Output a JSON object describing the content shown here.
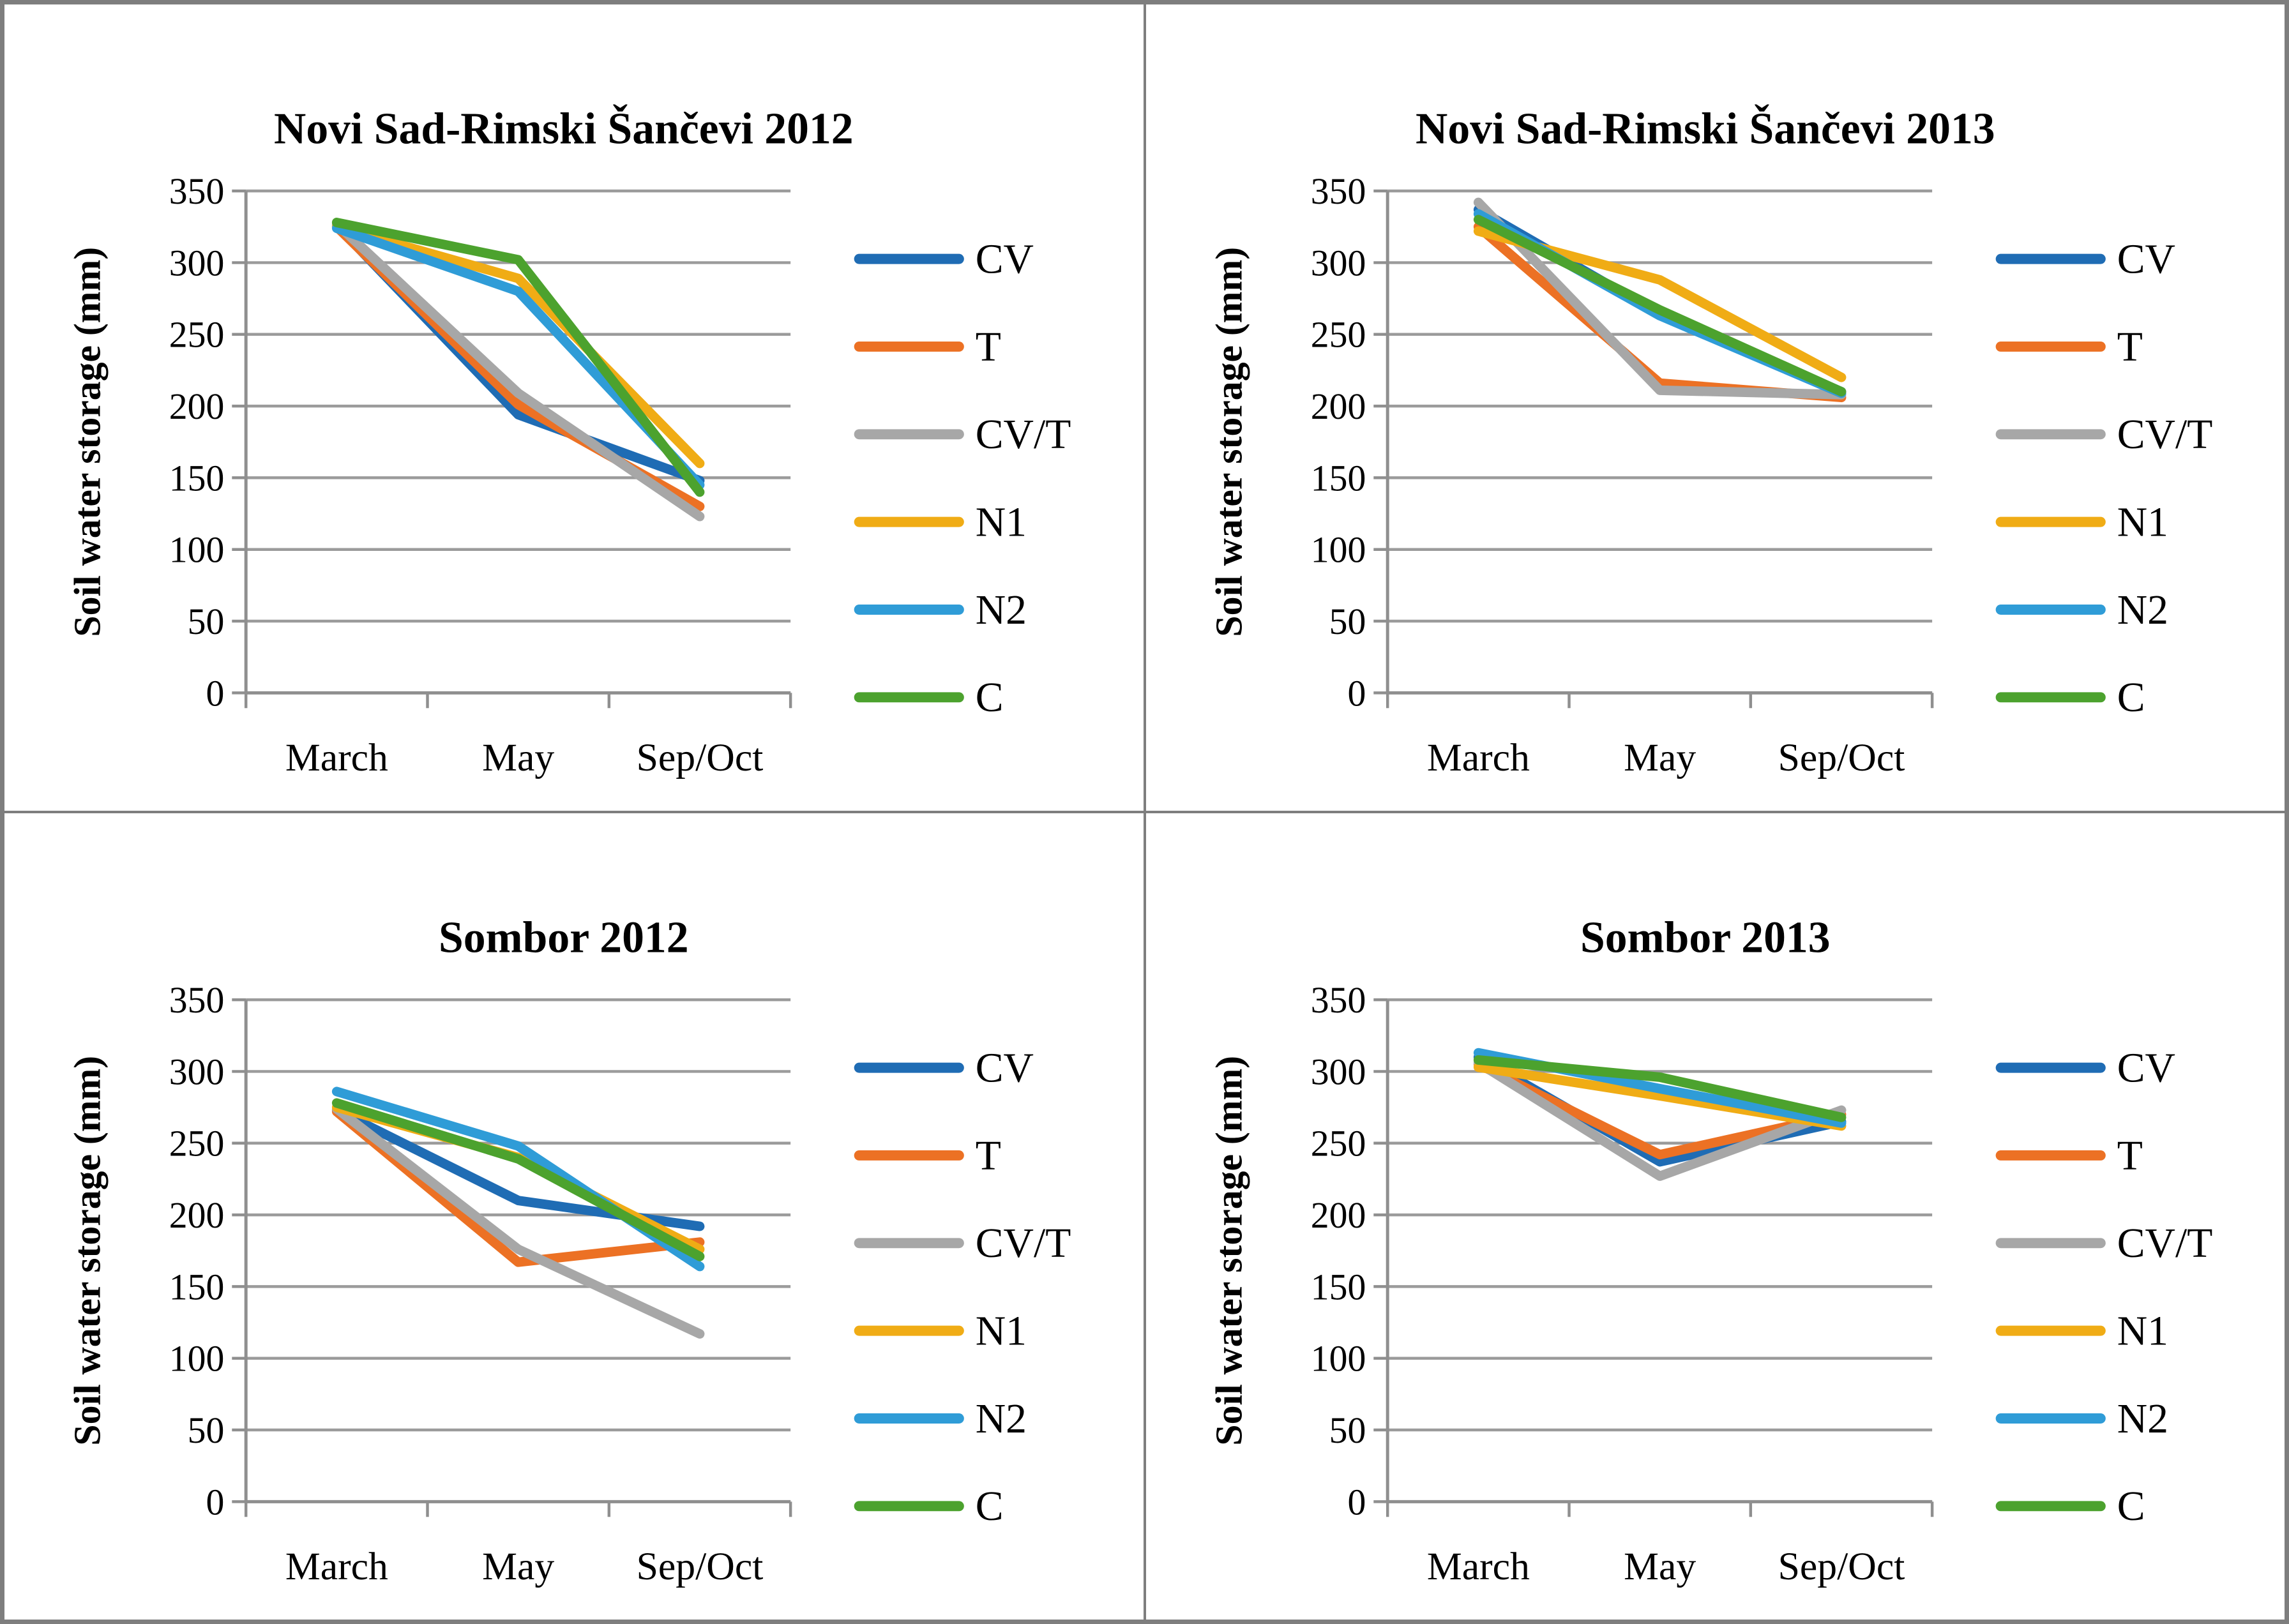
{
  "figure": {
    "ylabel": "Soil water storage (mm)",
    "x_categories": [
      "March",
      "May",
      "Sep/Oct"
    ],
    "y_ticks": [
      350,
      300,
      250,
      200,
      150,
      100,
      50,
      0
    ],
    "legend_position": "right",
    "grid": "horizontal",
    "colors": {
      "CV": "#1f6cb4",
      "T": "#ec7124",
      "CV/T": "#a7a7a7",
      "N1": "#f0ac15",
      "N2": "#2f9cd7",
      "C": "#4ca22e",
      "gridline": "#9b9b9b",
      "axis": "#8f8f8f",
      "border": "#7e7e7e",
      "text": "#000000"
    }
  },
  "chart_data": [
    {
      "type": "line",
      "title": "Novi Sad-Rimski Šančevi 2012",
      "xlabel": "",
      "ylabel": "Soil water storage (mm)",
      "ylim": [
        0,
        350
      ],
      "ytick_step": 50,
      "categories": [
        "March",
        "May",
        "Sep/Oct"
      ],
      "series": [
        {
          "name": "CV",
          "values": [
            326,
            194,
            148
          ]
        },
        {
          "name": "T",
          "values": [
            325,
            201,
            130
          ]
        },
        {
          "name": "CV/T",
          "values": [
            327,
            209,
            123
          ]
        },
        {
          "name": "N1",
          "values": [
            325,
            289,
            160
          ]
        },
        {
          "name": "N2",
          "values": [
            324,
            280,
            145
          ]
        },
        {
          "name": "C",
          "values": [
            328,
            302,
            140
          ]
        }
      ]
    },
    {
      "type": "line",
      "title": "Novi Sad-Rimski Šančevi 2013",
      "xlabel": "",
      "ylabel": "Soil water storage (mm)",
      "ylim": [
        0,
        350
      ],
      "ytick_step": 50,
      "categories": [
        "March",
        "May",
        "Sep/Oct"
      ],
      "series": [
        {
          "name": "CV",
          "values": [
            337,
            264,
            210
          ]
        },
        {
          "name": "T",
          "values": [
            325,
            216,
            206
          ]
        },
        {
          "name": "CV/T",
          "values": [
            342,
            211,
            208
          ]
        },
        {
          "name": "N1",
          "values": [
            322,
            288,
            220
          ]
        },
        {
          "name": "N2",
          "values": [
            334,
            263,
            209
          ]
        },
        {
          "name": "C",
          "values": [
            330,
            267,
            210
          ]
        }
      ]
    },
    {
      "type": "line",
      "title": "Sombor 2012",
      "xlabel": "",
      "ylabel": "Soil water storage (mm)",
      "ylim": [
        0,
        350
      ],
      "ytick_step": 50,
      "categories": [
        "March",
        "May",
        "Sep/Oct"
      ],
      "series": [
        {
          "name": "CV",
          "values": [
            273,
            210,
            192
          ]
        },
        {
          "name": "T",
          "values": [
            272,
            167,
            181
          ]
        },
        {
          "name": "CV/T",
          "values": [
            274,
            176,
            117
          ]
        },
        {
          "name": "N1",
          "values": [
            275,
            240,
            176
          ]
        },
        {
          "name": "N2",
          "values": [
            286,
            248,
            164
          ]
        },
        {
          "name": "C",
          "values": [
            278,
            239,
            171
          ]
        }
      ]
    },
    {
      "type": "line",
      "title": "Sombor 2013",
      "xlabel": "",
      "ylabel": "Soil water storage (mm)",
      "ylim": [
        0,
        350
      ],
      "ytick_step": 50,
      "categories": [
        "March",
        "May",
        "Sep/Oct"
      ],
      "series": [
        {
          "name": "CV",
          "values": [
            310,
            237,
            265
          ]
        },
        {
          "name": "T",
          "values": [
            305,
            242,
            270
          ]
        },
        {
          "name": "CV/T",
          "values": [
            306,
            227,
            273
          ]
        },
        {
          "name": "N1",
          "values": [
            303,
            283,
            262
          ]
        },
        {
          "name": "N2",
          "values": [
            313,
            288,
            264
          ]
        },
        {
          "name": "C",
          "values": [
            308,
            296,
            268
          ]
        }
      ]
    }
  ]
}
